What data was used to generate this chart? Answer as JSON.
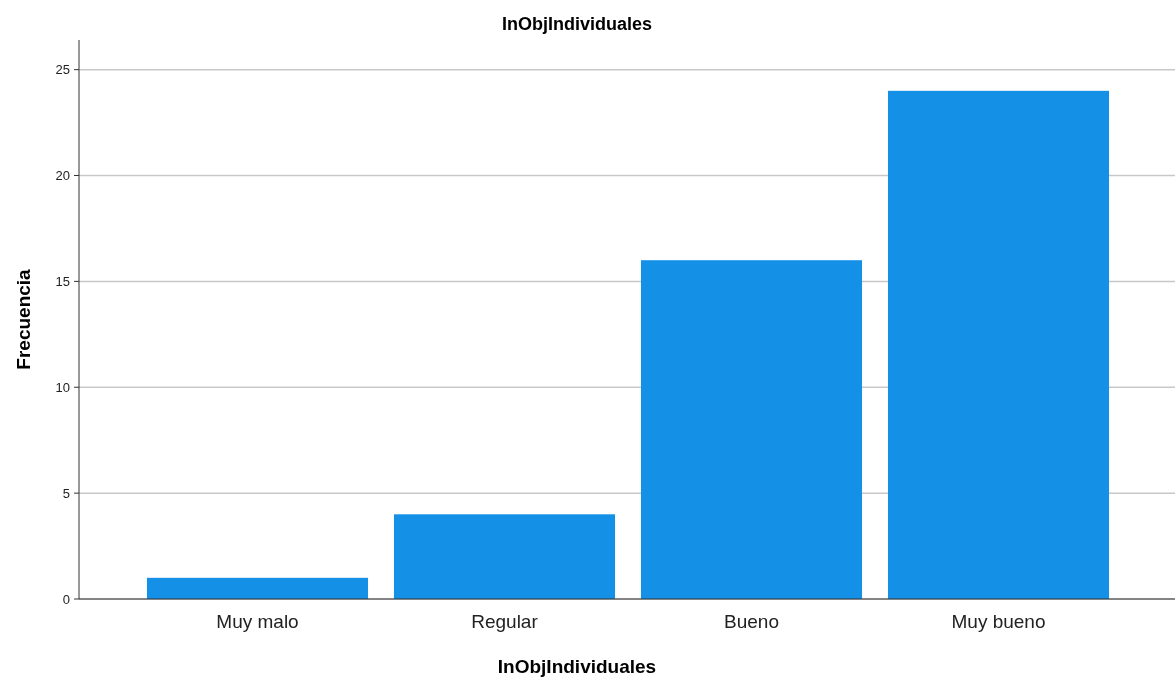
{
  "chart_data": {
    "type": "bar",
    "title": "InObjIndividuales",
    "xlabel": "InObjIndividuales",
    "ylabel": "Frecuencia",
    "categories": [
      "Muy malo",
      "Regular",
      "Bueno",
      "Muy bueno"
    ],
    "values": [
      1,
      4,
      16,
      24
    ],
    "color": "#1490e6",
    "ylim": [
      0,
      26.4
    ],
    "yticks": [
      0,
      5,
      10,
      15,
      20,
      25
    ],
    "grid": "y"
  }
}
